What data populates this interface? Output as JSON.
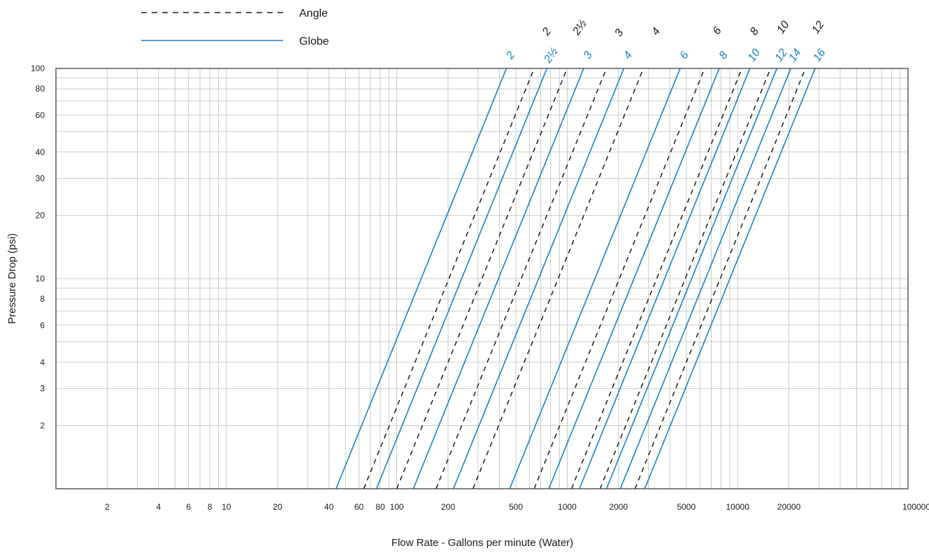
{
  "chart_data": {
    "type": "line",
    "xlabel": "Flow Rate - Gallons per minute (Water)",
    "ylabel": "Pressure Drop (psi)",
    "x_scale": "log",
    "y_scale": "log",
    "xlim": [
      1,
      100000
    ],
    "ylim": [
      1,
      100
    ],
    "grid": true,
    "legend_position": "top-left",
    "x_tick_labels": [
      {
        "value": 2,
        "label": "2"
      },
      {
        "value": 4,
        "label": "4"
      },
      {
        "value": 6,
        "label": "6"
      },
      {
        "value": 8,
        "label": "8"
      },
      {
        "value": 10,
        "label": "10"
      },
      {
        "value": 20,
        "label": "20"
      },
      {
        "value": 40,
        "label": "40"
      },
      {
        "value": 60,
        "label": "60"
      },
      {
        "value": 80,
        "label": "80"
      },
      {
        "value": 100,
        "label": "100"
      },
      {
        "value": 200,
        "label": "200"
      },
      {
        "value": 500,
        "label": "500"
      },
      {
        "value": 1000,
        "label": "1000"
      },
      {
        "value": 2000,
        "label": "2000"
      },
      {
        "value": 5000,
        "label": "5000"
      },
      {
        "value": 10000,
        "label": "10000"
      },
      {
        "value": 20000,
        "label": "20000"
      },
      {
        "value": 100000,
        "label": "100000"
      }
    ],
    "x_grid_values": [
      2,
      3,
      4,
      5,
      6,
      7,
      8,
      9,
      10,
      20,
      30,
      40,
      50,
      60,
      70,
      80,
      90,
      100,
      200,
      300,
      400,
      500,
      600,
      700,
      800,
      900,
      1000,
      2000,
      3000,
      4000,
      5000,
      6000,
      7000,
      8000,
      9000,
      10000,
      20000,
      30000,
      40000,
      50000,
      60000,
      70000,
      80000,
      90000
    ],
    "y_tick_labels": [
      {
        "value": 2,
        "label": "2"
      },
      {
        "value": 3,
        "label": "3"
      },
      {
        "value": 4,
        "label": "4"
      },
      {
        "value": 6,
        "label": "6"
      },
      {
        "value": 8,
        "label": "8"
      },
      {
        "value": 10,
        "label": "10"
      },
      {
        "value": 20,
        "label": "20"
      },
      {
        "value": 30,
        "label": "30"
      },
      {
        "value": 40,
        "label": "40"
      },
      {
        "value": 60,
        "label": "60"
      },
      {
        "value": 80,
        "label": "80"
      },
      {
        "value": 100,
        "label": "100"
      }
    ],
    "y_grid_values": [
      2,
      3,
      4,
      5,
      6,
      7,
      8,
      9,
      10,
      20,
      30,
      40,
      50,
      60,
      70,
      80,
      90
    ],
    "legend": [
      {
        "label": "Angle",
        "style": "dashed",
        "color": "#1a1a1a"
      },
      {
        "label": "Globe",
        "style": "solid",
        "color": "#1a7fc1"
      }
    ],
    "series": [
      {
        "group": "Globe",
        "label": "2",
        "color": "#1a7fc1",
        "style": "solid",
        "points": [
          [
            44,
            1
          ],
          [
            440,
            100
          ]
        ]
      },
      {
        "group": "Globe",
        "label": "2½",
        "color": "#1a7fc1",
        "style": "solid",
        "points": [
          [
            76,
            1
          ],
          [
            760,
            100
          ]
        ]
      },
      {
        "group": "Globe",
        "label": "3",
        "color": "#1a7fc1",
        "style": "solid",
        "points": [
          [
            125,
            1
          ],
          [
            1250,
            100
          ]
        ]
      },
      {
        "group": "Globe",
        "label": "4",
        "color": "#1a7fc1",
        "style": "solid",
        "points": [
          [
            215,
            1
          ],
          [
            2150,
            100
          ]
        ]
      },
      {
        "group": "Globe",
        "label": "6",
        "color": "#1a7fc1",
        "style": "solid",
        "points": [
          [
            460,
            1
          ],
          [
            4600,
            100
          ]
        ]
      },
      {
        "group": "Globe",
        "label": "8",
        "color": "#1a7fc1",
        "style": "solid",
        "points": [
          [
            780,
            1
          ],
          [
            7800,
            100
          ]
        ]
      },
      {
        "group": "Globe",
        "label": "10",
        "color": "#1a7fc1",
        "style": "solid",
        "points": [
          [
            1180,
            1
          ],
          [
            11800,
            100
          ]
        ]
      },
      {
        "group": "Globe",
        "label": "12",
        "color": "#1a7fc1",
        "style": "solid",
        "points": [
          [
            1700,
            1
          ],
          [
            17000,
            100
          ]
        ]
      },
      {
        "group": "Globe",
        "label": "14",
        "color": "#1a7fc1",
        "style": "solid",
        "points": [
          [
            2050,
            1
          ],
          [
            20500,
            100
          ]
        ]
      },
      {
        "group": "Globe",
        "label": "16",
        "color": "#1a7fc1",
        "style": "solid",
        "points": [
          [
            2850,
            1
          ],
          [
            28500,
            100
          ]
        ]
      },
      {
        "group": "Angle",
        "label": "2",
        "color": "#1a1a1a",
        "style": "dashed",
        "points": [
          [
            64,
            1
          ],
          [
            640,
            100
          ]
        ]
      },
      {
        "group": "Angle",
        "label": "2½",
        "color": "#1a1a1a",
        "style": "dashed",
        "points": [
          [
            100,
            1
          ],
          [
            1000,
            100
          ]
        ]
      },
      {
        "group": "Angle",
        "label": "3",
        "color": "#1a1a1a",
        "style": "dashed",
        "points": [
          [
            170,
            1
          ],
          [
            1700,
            100
          ]
        ]
      },
      {
        "group": "Angle",
        "label": "4",
        "color": "#1a1a1a",
        "style": "dashed",
        "points": [
          [
            280,
            1
          ],
          [
            2800,
            100
          ]
        ]
      },
      {
        "group": "Angle",
        "label": "6",
        "color": "#1a1a1a",
        "style": "dashed",
        "points": [
          [
            640,
            1
          ],
          [
            6400,
            100
          ]
        ]
      },
      {
        "group": "Angle",
        "label": "8",
        "color": "#1a1a1a",
        "style": "dashed",
        "points": [
          [
            1060,
            1
          ],
          [
            10600,
            100
          ]
        ]
      },
      {
        "group": "Angle",
        "label": "10",
        "color": "#1a1a1a",
        "style": "dashed",
        "points": [
          [
            1560,
            1
          ],
          [
            15600,
            100
          ]
        ]
      },
      {
        "group": "Angle",
        "label": "12",
        "color": "#1a1a1a",
        "style": "dashed",
        "points": [
          [
            2500,
            1
          ],
          [
            25000,
            100
          ]
        ]
      }
    ]
  }
}
